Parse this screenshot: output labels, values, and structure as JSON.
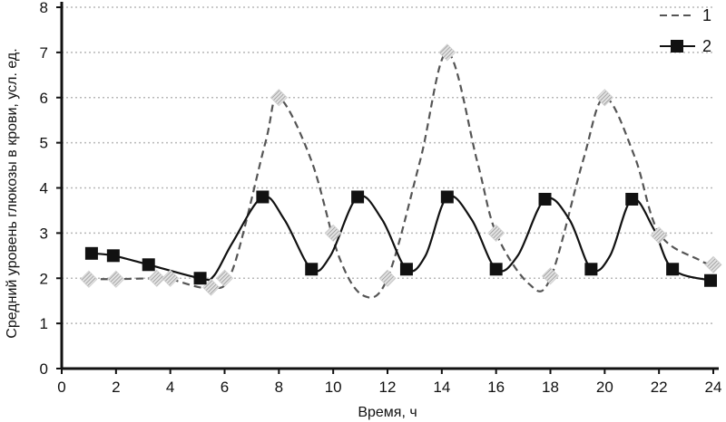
{
  "chart_data": {
    "type": "line",
    "xlabel": "Время, ч",
    "ylabel": "Средний уровень глюкозы в крови, усл. ед.",
    "xlim": [
      0,
      24
    ],
    "ylim": [
      0,
      8
    ],
    "xticks": [
      0,
      2,
      4,
      6,
      8,
      10,
      12,
      14,
      16,
      18,
      20,
      22,
      24
    ],
    "yticks": [
      0,
      1,
      2,
      3,
      4,
      5,
      6,
      7,
      8
    ],
    "grid": "horizontal-dotted",
    "legend_position": "top-right",
    "series": [
      {
        "name": "1",
        "style": "dashed",
        "color": "#555555",
        "marker": "diamond",
        "x": [
          1.0,
          2.0,
          3.5,
          4.0,
          5.5,
          6.0,
          8.0,
          10.0,
          12.0,
          14.2,
          16.0,
          18.0,
          20.0,
          22.0,
          24.0
        ],
        "y": [
          1.98,
          1.98,
          2.0,
          2.0,
          1.8,
          2.0,
          6.0,
          3.0,
          2.0,
          7.0,
          3.0,
          2.05,
          6.0,
          2.95,
          2.3
        ],
        "curve": [
          [
            1.0,
            1.98
          ],
          [
            2.0,
            1.98
          ],
          [
            3.5,
            2.0
          ],
          [
            4.0,
            1.98
          ],
          [
            5.5,
            1.78
          ],
          [
            6.3,
            2.2
          ],
          [
            7.5,
            5.0
          ],
          [
            8.0,
            6.0
          ],
          [
            9.2,
            4.6
          ],
          [
            10.2,
            2.5
          ],
          [
            11.1,
            1.62
          ],
          [
            12.0,
            2.0
          ],
          [
            13.2,
            4.6
          ],
          [
            14.2,
            7.0
          ],
          [
            15.3,
            4.6
          ],
          [
            16.0,
            3.0
          ],
          [
            17.2,
            1.88
          ],
          [
            18.0,
            2.0
          ],
          [
            19.2,
            4.6
          ],
          [
            20.0,
            6.0
          ],
          [
            21.1,
            4.7
          ],
          [
            22.0,
            3.0
          ],
          [
            23.5,
            2.4
          ],
          [
            24.0,
            2.3
          ]
        ]
      },
      {
        "name": "2",
        "style": "solid",
        "color": "#111111",
        "marker": "square",
        "x": [
          1.1,
          1.9,
          3.2,
          5.1,
          7.4,
          9.2,
          10.9,
          12.7,
          14.2,
          16.0,
          17.8,
          19.5,
          21.0,
          22.5,
          23.9
        ],
        "y": [
          2.55,
          2.5,
          2.3,
          2.0,
          3.8,
          2.2,
          3.8,
          2.2,
          3.8,
          2.2,
          3.75,
          2.2,
          3.75,
          2.2,
          1.95
        ],
        "curve": [
          [
            1.1,
            2.55
          ],
          [
            1.9,
            2.5
          ],
          [
            3.2,
            2.3
          ],
          [
            5.1,
            2.0
          ],
          [
            5.6,
            2.05
          ],
          [
            6.3,
            2.8
          ],
          [
            7.4,
            3.8
          ],
          [
            8.2,
            3.3
          ],
          [
            9.2,
            2.2
          ],
          [
            9.9,
            2.5
          ],
          [
            10.9,
            3.8
          ],
          [
            11.8,
            3.3
          ],
          [
            12.7,
            2.2
          ],
          [
            13.4,
            2.5
          ],
          [
            14.2,
            3.8
          ],
          [
            15.1,
            3.3
          ],
          [
            16.0,
            2.2
          ],
          [
            16.8,
            2.5
          ],
          [
            17.8,
            3.75
          ],
          [
            18.7,
            3.3
          ],
          [
            19.5,
            2.2
          ],
          [
            20.2,
            2.5
          ],
          [
            21.0,
            3.75
          ],
          [
            21.8,
            3.1
          ],
          [
            22.5,
            2.2
          ],
          [
            23.9,
            1.95
          ]
        ]
      }
    ]
  }
}
